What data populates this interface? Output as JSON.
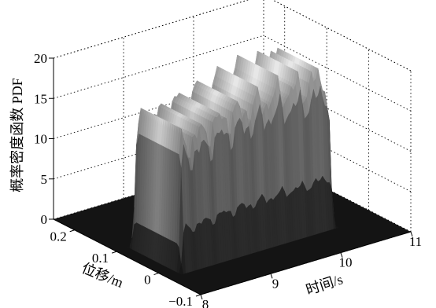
{
  "chart_data": {
    "type": "surface",
    "title": "",
    "xlabel": "时间/s",
    "ylabel": "位移/m",
    "zlabel": "概率密度函数 PDF",
    "xlim": [
      8,
      11
    ],
    "ylim": [
      -0.1,
      0.25
    ],
    "zlim": [
      0,
      20
    ],
    "x_ticks": [
      "8",
      "9",
      "10",
      "11"
    ],
    "y_ticks": [
      "−0.1",
      "0",
      "0.1",
      "0.2"
    ],
    "z_ticks": [
      "0",
      "5",
      "10",
      "15",
      "20"
    ],
    "x_tick_values": [
      8,
      9,
      10,
      11
    ],
    "y_tick_values": [
      -0.1,
      0,
      0.1,
      0.2
    ],
    "z_tick_values": [
      0,
      5,
      10,
      15,
      20
    ],
    "grid": true,
    "colormap": "gray",
    "surface_extent": {
      "x": [
        8.2,
        10.4
      ],
      "y": [
        -0.02,
        0.1
      ]
    },
    "description_values": {
      "time": [
        8.2,
        8.4,
        8.6,
        8.8,
        9.0,
        9.2,
        9.4,
        9.6,
        9.8,
        10.0,
        10.2,
        10.4
      ],
      "peak_pdf": [
        15.0,
        15.5,
        16.0,
        16.8,
        17.0,
        17.2,
        17.5,
        17.8,
        18.0,
        17.8,
        18.2,
        18.5
      ],
      "displacement_range": [
        -0.02,
        0.1
      ]
    }
  }
}
